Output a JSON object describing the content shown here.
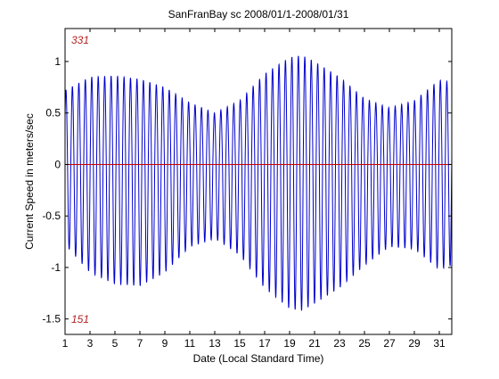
{
  "chart_data": {
    "type": "line",
    "title": "SanFranBay sc 2008/01/1-2008/01/31",
    "xlabel": "Date (Local Standard Time)",
    "ylabel": "Current Speed in meters/sec",
    "xlim": [
      1,
      32
    ],
    "ylim": [
      -1.65,
      1.32
    ],
    "x_ticks": [
      1,
      3,
      5,
      7,
      9,
      11,
      13,
      15,
      17,
      19,
      21,
      23,
      25,
      27,
      29,
      31
    ],
    "x_tick_labels": [
      "1",
      "3",
      "5",
      "7",
      "9",
      "11",
      "13",
      "15",
      "17",
      "19",
      "21",
      "23",
      "25",
      "27",
      "29",
      "31"
    ],
    "y_ticks": [
      -1.5,
      -1,
      -0.5,
      0,
      0.5,
      1
    ],
    "y_tick_labels": [
      "-1.5",
      "-1",
      "-0.5",
      "0",
      "0.5",
      "1"
    ],
    "grid": false,
    "annotations": {
      "top_direction": "331",
      "bottom_direction": "151"
    },
    "series": [
      {
        "color": "#0000cc",
        "tidal_period_days": 0.5175,
        "flood_peak_envelope": {
          "day": [
            1,
            3,
            5,
            7,
            9,
            11,
            13,
            15,
            17,
            19,
            20,
            21,
            23,
            25,
            27,
            29,
            31,
            32
          ],
          "value": [
            0.72,
            0.85,
            0.86,
            0.83,
            0.75,
            0.6,
            0.5,
            0.62,
            0.88,
            1.04,
            1.06,
            1.0,
            0.85,
            0.64,
            0.55,
            0.62,
            0.82,
            0.8
          ]
        },
        "ebb_peak_envelope": {
          "day": [
            1,
            3,
            5,
            7,
            9,
            11,
            13,
            15,
            17,
            19,
            20,
            21,
            23,
            25,
            27,
            29,
            31,
            32
          ],
          "value": [
            -0.78,
            -1.05,
            -1.16,
            -1.18,
            -1.05,
            -0.8,
            -0.72,
            -0.88,
            -1.2,
            -1.4,
            -1.42,
            -1.35,
            -1.2,
            -0.98,
            -0.8,
            -0.82,
            -1.02,
            -0.98
          ]
        }
      },
      {
        "color": "#cc0000",
        "constant_value": 0
      }
    ]
  }
}
